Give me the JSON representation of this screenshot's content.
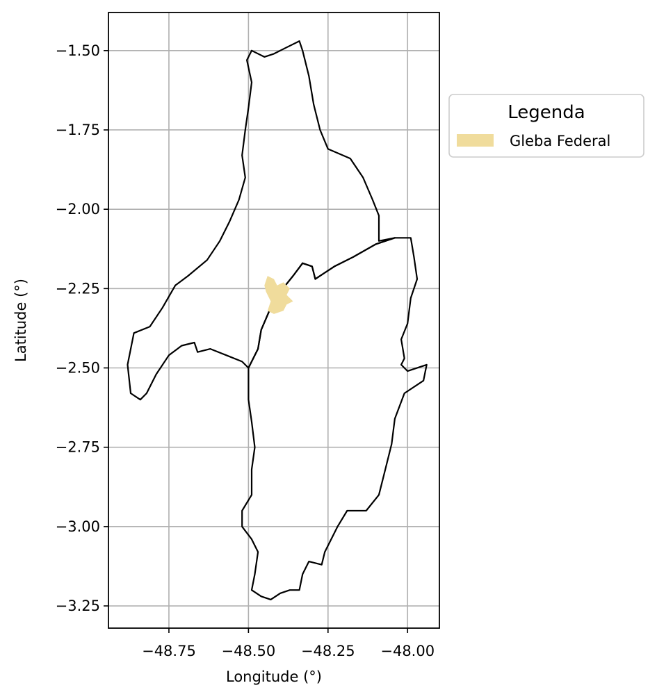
{
  "chart_data": {
    "type": "map",
    "title": "",
    "xlabel": "Longitude (°)",
    "ylabel": "Latitude (°)",
    "xlim": [
      -48.94,
      -47.9
    ],
    "ylim": [
      -3.32,
      -1.38
    ],
    "grid": true,
    "xticks": [
      -48.75,
      -48.5,
      -48.25,
      -48.0
    ],
    "xtick_labels": [
      "−48.75",
      "−48.50",
      "−48.25",
      "−48.00"
    ],
    "yticks": [
      -1.5,
      -1.75,
      -2.0,
      -2.25,
      -2.5,
      -2.75,
      -3.0,
      -3.25
    ],
    "ytick_labels": [
      "−1.50",
      "−1.75",
      "−2.00",
      "−2.25",
      "−2.50",
      "−2.75",
      "−3.00",
      "−3.25"
    ],
    "legend": {
      "title": "Legenda",
      "placement": "outside-right-upper",
      "entries": [
        {
          "label": "Gleba Federal",
          "color": "#f0dc9c"
        }
      ]
    },
    "colors": {
      "gleba_fill": "#f0dc9c",
      "boundary": "#000000",
      "grid": "#b0b0b0"
    },
    "layers": {
      "north_region": [
        [
          -48.505,
          -1.53
        ],
        [
          -48.49,
          -1.5
        ],
        [
          -48.45,
          -1.52
        ],
        [
          -48.42,
          -1.51
        ],
        [
          -48.38,
          -1.49
        ],
        [
          -48.34,
          -1.47
        ],
        [
          -48.33,
          -1.5
        ],
        [
          -48.31,
          -1.58
        ],
        [
          -48.295,
          -1.67
        ],
        [
          -48.275,
          -1.75
        ],
        [
          -48.25,
          -1.81
        ],
        [
          -48.18,
          -1.84
        ],
        [
          -48.14,
          -1.9
        ],
        [
          -48.11,
          -1.97
        ],
        [
          -48.09,
          -2.02
        ],
        [
          -48.09,
          -2.1
        ],
        [
          -48.04,
          -2.09
        ],
        [
          -48.1,
          -2.11
        ],
        [
          -48.17,
          -2.15
        ],
        [
          -48.23,
          -2.18
        ],
        [
          -48.26,
          -2.2
        ],
        [
          -48.29,
          -2.22
        ],
        [
          -48.3,
          -2.18
        ],
        [
          -48.33,
          -2.17
        ],
        [
          -48.36,
          -2.21
        ],
        [
          -48.4,
          -2.26
        ],
        [
          -48.43,
          -2.31
        ],
        [
          -48.46,
          -2.38
        ],
        [
          -48.47,
          -2.44
        ],
        [
          -48.5,
          -2.5
        ],
        [
          -48.52,
          -2.48
        ],
        [
          -48.57,
          -2.46
        ],
        [
          -48.62,
          -2.44
        ],
        [
          -48.66,
          -2.45
        ],
        [
          -48.67,
          -2.42
        ],
        [
          -48.71,
          -2.43
        ],
        [
          -48.75,
          -2.46
        ],
        [
          -48.79,
          -2.52
        ],
        [
          -48.82,
          -2.58
        ],
        [
          -48.84,
          -2.6
        ],
        [
          -48.87,
          -2.58
        ],
        [
          -48.88,
          -2.49
        ],
        [
          -48.86,
          -2.39
        ],
        [
          -48.81,
          -2.37
        ],
        [
          -48.77,
          -2.31
        ],
        [
          -48.73,
          -2.24
        ],
        [
          -48.69,
          -2.21
        ],
        [
          -48.63,
          -2.16
        ],
        [
          -48.59,
          -2.1
        ],
        [
          -48.56,
          -2.04
        ],
        [
          -48.53,
          -1.97
        ],
        [
          -48.51,
          -1.9
        ],
        [
          -48.52,
          -1.83
        ],
        [
          -48.51,
          -1.75
        ],
        [
          -48.5,
          -1.68
        ],
        [
          -48.49,
          -1.6
        ]
      ],
      "south_region": [
        [
          -48.5,
          -2.5
        ],
        [
          -48.47,
          -2.44
        ],
        [
          -48.46,
          -2.38
        ],
        [
          -48.43,
          -2.31
        ],
        [
          -48.4,
          -2.26
        ],
        [
          -48.36,
          -2.21
        ],
        [
          -48.33,
          -2.17
        ],
        [
          -48.3,
          -2.18
        ],
        [
          -48.29,
          -2.22
        ],
        [
          -48.26,
          -2.2
        ],
        [
          -48.23,
          -2.18
        ],
        [
          -48.17,
          -2.15
        ],
        [
          -48.1,
          -2.11
        ],
        [
          -48.04,
          -2.09
        ],
        [
          -47.99,
          -2.09
        ],
        [
          -47.98,
          -2.15
        ],
        [
          -47.97,
          -2.22
        ],
        [
          -47.99,
          -2.28
        ],
        [
          -48.0,
          -2.36
        ],
        [
          -48.02,
          -2.41
        ],
        [
          -48.01,
          -2.47
        ],
        [
          -48.02,
          -2.49
        ],
        [
          -48.0,
          -2.51
        ],
        [
          -47.94,
          -2.49
        ],
        [
          -47.95,
          -2.54
        ],
        [
          -48.01,
          -2.58
        ],
        [
          -48.04,
          -2.66
        ],
        [
          -48.05,
          -2.74
        ],
        [
          -48.07,
          -2.82
        ],
        [
          -48.09,
          -2.9
        ],
        [
          -48.13,
          -2.95
        ],
        [
          -48.19,
          -2.95
        ],
        [
          -48.22,
          -3.0
        ],
        [
          -48.26,
          -3.08
        ],
        [
          -48.27,
          -3.12
        ],
        [
          -48.31,
          -3.11
        ],
        [
          -48.33,
          -3.15
        ],
        [
          -48.34,
          -3.2
        ],
        [
          -48.37,
          -3.2
        ],
        [
          -48.4,
          -3.21
        ],
        [
          -48.43,
          -3.23
        ],
        [
          -48.46,
          -3.22
        ],
        [
          -48.49,
          -3.2
        ],
        [
          -48.48,
          -3.15
        ],
        [
          -48.47,
          -3.08
        ],
        [
          -48.49,
          -3.04
        ],
        [
          -48.52,
          -3.0
        ],
        [
          -48.52,
          -2.95
        ],
        [
          -48.49,
          -2.9
        ],
        [
          -48.49,
          -2.82
        ],
        [
          -48.48,
          -2.75
        ],
        [
          -48.49,
          -2.67
        ],
        [
          -48.5,
          -2.6
        ],
        [
          -48.5,
          -2.55
        ]
      ],
      "gleba_federal": [
        [
          -48.44,
          -2.21
        ],
        [
          -48.42,
          -2.22
        ],
        [
          -48.41,
          -2.24
        ],
        [
          -48.39,
          -2.23
        ],
        [
          -48.37,
          -2.25
        ],
        [
          -48.38,
          -2.27
        ],
        [
          -48.36,
          -2.29
        ],
        [
          -48.38,
          -2.3
        ],
        [
          -48.39,
          -2.32
        ],
        [
          -48.42,
          -2.33
        ],
        [
          -48.44,
          -2.32
        ],
        [
          -48.43,
          -2.29
        ],
        [
          -48.445,
          -2.26
        ],
        [
          -48.45,
          -2.24
        ]
      ]
    }
  }
}
